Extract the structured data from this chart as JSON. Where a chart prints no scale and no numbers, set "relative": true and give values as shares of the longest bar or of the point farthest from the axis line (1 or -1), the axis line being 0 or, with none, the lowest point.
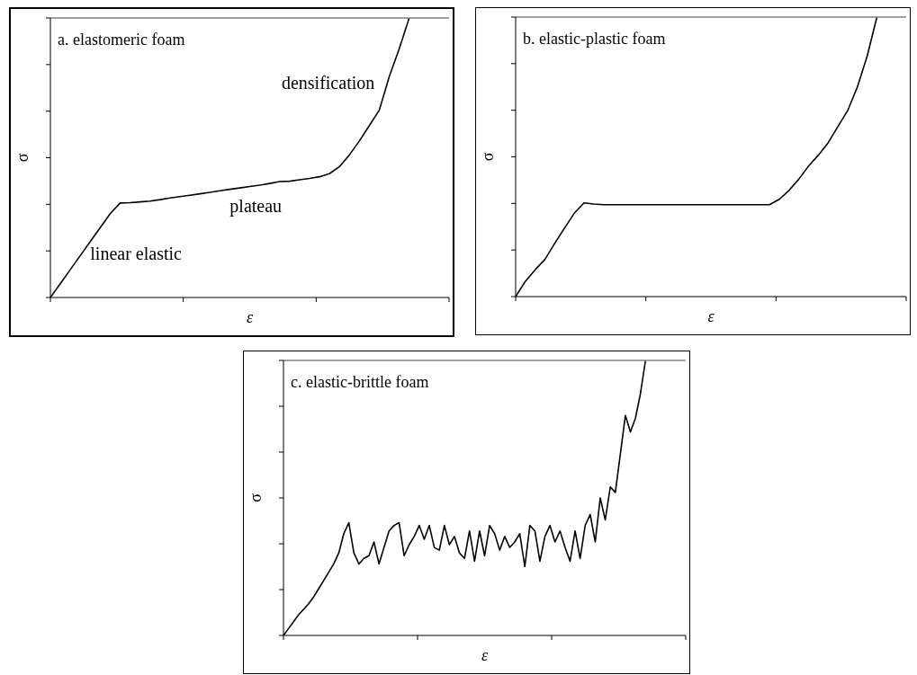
{
  "chart_data": [
    {
      "type": "line",
      "title": "a. elastomeric foam",
      "xlabel": "ε",
      "ylabel": "σ",
      "relative": true,
      "color": "#000000",
      "categories": [
        null,
        null,
        null,
        null,
        null,
        null,
        null,
        null,
        null,
        null,
        null,
        null,
        null,
        null,
        null,
        null,
        null,
        null,
        null,
        null,
        null,
        null,
        null,
        null,
        null,
        null,
        null,
        null,
        null,
        null,
        null,
        null,
        null,
        null,
        null,
        null,
        null,
        null,
        null,
        null,
        null
      ],
      "values": [
        0,
        0.05,
        0.1,
        0.15,
        0.2,
        0.25,
        0.3,
        0.338,
        0.339,
        0.342,
        0.345,
        0.35,
        0.356,
        0.361,
        0.366,
        0.371,
        0.376,
        0.382,
        0.387,
        0.392,
        0.397,
        0.402,
        0.408,
        0.415,
        0.416,
        0.421,
        0.426,
        0.432,
        0.443,
        0.468,
        0.51,
        0.56,
        0.615,
        0.67,
        0.79,
        0.89,
        1,
        null,
        null,
        null,
        null
      ],
      "annotations": [
        "linear elastic",
        "plateau",
        "densification"
      ]
    },
    {
      "type": "line",
      "title": "b. elastic-plastic foam",
      "xlabel": "ε",
      "ylabel": "σ",
      "relative": true,
      "color": "#000000",
      "categories": [
        null,
        null,
        null,
        null,
        null,
        null,
        null,
        null,
        null,
        null,
        null,
        null,
        null,
        null,
        null,
        null,
        null,
        null,
        null,
        null,
        null,
        null,
        null,
        null,
        null,
        null,
        null,
        null,
        null,
        null,
        null,
        null,
        null,
        null,
        null,
        null,
        null,
        null,
        null,
        null,
        null
      ],
      "values": [
        0,
        0.055,
        0.096,
        0.133,
        0.19,
        0.245,
        0.298,
        0.335,
        0.331,
        0.329,
        0.329,
        0.329,
        0.329,
        0.329,
        0.329,
        0.329,
        0.329,
        0.329,
        0.329,
        0.329,
        0.329,
        0.329,
        0.329,
        0.329,
        0.329,
        0.329,
        0.329,
        0.348,
        0.38,
        0.42,
        0.467,
        0.506,
        0.55,
        0.608,
        0.665,
        0.75,
        0.86,
        1,
        null,
        null,
        null
      ]
    },
    {
      "type": "line",
      "title": "c. elastic-brittle foam",
      "xlabel": "ε",
      "ylabel": "σ",
      "relative": true,
      "color": "#000000",
      "categories": [
        null,
        null,
        null,
        null,
        null,
        null,
        null,
        null,
        null,
        null,
        null,
        null,
        null,
        null,
        null,
        null,
        null,
        null,
        null,
        null,
        null,
        null,
        null,
        null,
        null,
        null,
        null,
        null,
        null,
        null,
        null,
        null,
        null,
        null,
        null,
        null,
        null,
        null,
        null,
        null,
        null,
        null,
        null,
        null,
        null,
        null,
        null,
        null,
        null,
        null,
        null,
        null,
        null,
        null,
        null,
        null,
        null,
        null,
        null,
        null,
        null,
        null,
        null,
        null,
        null,
        null,
        null,
        null,
        null,
        null,
        null,
        null,
        null,
        null,
        null,
        null,
        null,
        null,
        null,
        null,
        null
      ],
      "values": [
        0,
        0.025,
        0.05,
        0.075,
        0.095,
        0.115,
        0.14,
        0.17,
        0.2,
        0.23,
        0.26,
        0.3,
        0.37,
        0.41,
        0.3,
        0.26,
        0.28,
        0.29,
        0.34,
        0.26,
        0.32,
        0.38,
        0.4,
        0.41,
        0.29,
        0.33,
        0.36,
        0.4,
        0.35,
        0.4,
        0.32,
        0.31,
        0.4,
        0.33,
        0.36,
        0.3,
        0.28,
        0.38,
        0.27,
        0.38,
        0.29,
        0.4,
        0.37,
        0.31,
        0.36,
        0.32,
        0.34,
        0.37,
        0.25,
        0.4,
        0.38,
        0.27,
        0.36,
        0.4,
        0.34,
        0.38,
        0.32,
        0.27,
        0.38,
        0.28,
        0.4,
        0.44,
        0.34,
        0.5,
        0.42,
        0.54,
        0.52,
        0.66,
        0.8,
        0.74,
        0.79,
        0.88,
        1,
        null,
        null,
        null,
        null,
        null,
        null,
        null,
        null
      ]
    }
  ]
}
